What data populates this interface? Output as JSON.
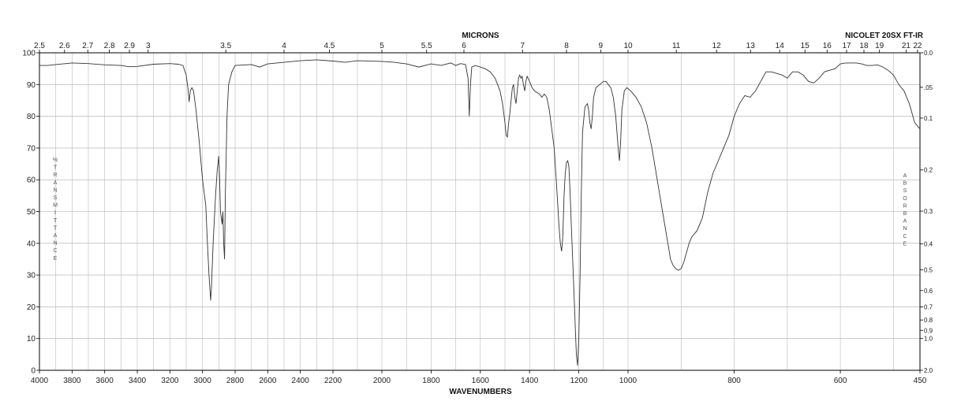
{
  "chart_data": {
    "type": "line",
    "instrument": "NICOLET 20SX FT-IR",
    "xlabel": "WAVENUMBERS",
    "x2label": "MICRONS",
    "ylabel": "%TRANSMITTANCE",
    "y2label": "ABSORBANCE",
    "xlim": [
      4000,
      450
    ],
    "ylim": [
      0,
      100
    ],
    "grid": true,
    "wavenumber_ticks": [
      {
        "value": 4000,
        "label": "4000"
      },
      {
        "value": 3800,
        "label": "3800"
      },
      {
        "value": 3600,
        "label": "3600"
      },
      {
        "value": 3400,
        "label": "3400"
      },
      {
        "value": 3200,
        "label": "3200"
      },
      {
        "value": 3000,
        "label": "3000"
      },
      {
        "value": 2800,
        "label": "2800"
      },
      {
        "value": 2600,
        "label": "2600"
      },
      {
        "value": 2400,
        "label": "2400"
      },
      {
        "value": 2200,
        "label": "2200"
      },
      {
        "value": 2000,
        "label": "2000"
      },
      {
        "value": 1800,
        "label": "1800"
      },
      {
        "value": 1600,
        "label": "1600"
      },
      {
        "value": 1400,
        "label": "1400"
      },
      {
        "value": 1200,
        "label": "1200"
      },
      {
        "value": 1000,
        "label": "1000"
      },
      {
        "value": 800,
        "label": "800"
      },
      {
        "value": 600,
        "label": "600"
      },
      {
        "value": 450,
        "label": "450"
      }
    ],
    "micron_ticks": [
      {
        "value": 2.5,
        "label": "2.5"
      },
      {
        "value": 2.6,
        "label": "2.6"
      },
      {
        "value": 2.7,
        "label": "2.7"
      },
      {
        "value": 2.8,
        "label": "2.8"
      },
      {
        "value": 2.9,
        "label": "2.9"
      },
      {
        "value": 3,
        "label": "3"
      },
      {
        "value": 3.5,
        "label": "3.5"
      },
      {
        "value": 4,
        "label": "4"
      },
      {
        "value": 4.5,
        "label": "4.5"
      },
      {
        "value": 5,
        "label": "5"
      },
      {
        "value": 5.5,
        "label": "5.5"
      },
      {
        "value": 6,
        "label": "6"
      },
      {
        "value": 7,
        "label": "7"
      },
      {
        "value": 8,
        "label": "8"
      },
      {
        "value": 9,
        "label": "9"
      },
      {
        "value": 10,
        "label": "10"
      },
      {
        "value": 11,
        "label": "11"
      },
      {
        "value": 12,
        "label": "12"
      },
      {
        "value": 13,
        "label": "13"
      },
      {
        "value": 14,
        "label": "14"
      },
      {
        "value": 15,
        "label": "15"
      },
      {
        "value": 16,
        "label": "16"
      },
      {
        "value": 17,
        "label": "17"
      },
      {
        "value": 18,
        "label": "18"
      },
      {
        "value": 19,
        "label": "19"
      },
      {
        "value": 21,
        "label": "21"
      },
      {
        "value": 22,
        "label": "22"
      }
    ],
    "transmittance_ticks": [
      {
        "value": 0,
        "label": "0"
      },
      {
        "value": 10,
        "label": "10"
      },
      {
        "value": 20,
        "label": "20"
      },
      {
        "value": 30,
        "label": "30"
      },
      {
        "value": 40,
        "label": "40"
      },
      {
        "value": 50,
        "label": "50"
      },
      {
        "value": 60,
        "label": "60"
      },
      {
        "value": 70,
        "label": "70"
      },
      {
        "value": 80,
        "label": "80"
      },
      {
        "value": 90,
        "label": "90"
      },
      {
        "value": 100,
        "label": "100"
      }
    ],
    "absorbance_ticks": [
      {
        "value": 0.0,
        "label": "0.0"
      },
      {
        "value": 0.05,
        "label": ".05"
      },
      {
        "value": 0.1,
        "label": "0.1"
      },
      {
        "value": 0.2,
        "label": "0.2"
      },
      {
        "value": 0.3,
        "label": "0.3"
      },
      {
        "value": 0.4,
        "label": "0.4"
      },
      {
        "value": 0.5,
        "label": "0.5"
      },
      {
        "value": 0.6,
        "label": "0.6"
      },
      {
        "value": 0.7,
        "label": "0.7"
      },
      {
        "value": 0.8,
        "label": "0.8"
      },
      {
        "value": 0.9,
        "label": "0.9"
      },
      {
        "value": 1.0,
        "label": "1.0"
      },
      {
        "value": 2.0,
        "label": "2.0"
      }
    ],
    "series": [
      {
        "color": "#333333",
        "points": [
          [
            4000,
            96
          ],
          [
            3950,
            96
          ],
          [
            3900,
            96.3
          ],
          [
            3800,
            96.8
          ],
          [
            3700,
            96.6
          ],
          [
            3600,
            96.2
          ],
          [
            3500,
            96
          ],
          [
            3450,
            95.6
          ],
          [
            3400,
            95.7
          ],
          [
            3300,
            96.4
          ],
          [
            3200,
            96.6
          ],
          [
            3150,
            96.4
          ],
          [
            3120,
            96
          ],
          [
            3100,
            93
          ],
          [
            3090,
            89
          ],
          [
            3082,
            84.5
          ],
          [
            3075,
            88
          ],
          [
            3065,
            89
          ],
          [
            3055,
            88
          ],
          [
            3040,
            82
          ],
          [
            3020,
            72
          ],
          [
            3000,
            60
          ],
          [
            2990,
            56
          ],
          [
            2980,
            52
          ],
          [
            2970,
            40
          ],
          [
            2960,
            30
          ],
          [
            2950,
            22
          ],
          [
            2945,
            26
          ],
          [
            2935,
            40
          ],
          [
            2920,
            55
          ],
          [
            2910,
            63
          ],
          [
            2900,
            67.5
          ],
          [
            2895,
            60
          ],
          [
            2890,
            50
          ],
          [
            2880,
            46
          ],
          [
            2875,
            50
          ],
          [
            2870,
            40
          ],
          [
            2865,
            35
          ],
          [
            2860,
            55
          ],
          [
            2850,
            80
          ],
          [
            2840,
            90
          ],
          [
            2820,
            94
          ],
          [
            2800,
            96
          ],
          [
            2700,
            96.3
          ],
          [
            2650,
            95.5
          ],
          [
            2600,
            96.5
          ],
          [
            2500,
            97
          ],
          [
            2400,
            97.5
          ],
          [
            2300,
            97.8
          ],
          [
            2200,
            97.4
          ],
          [
            2150,
            97
          ],
          [
            2100,
            97.5
          ],
          [
            2000,
            97.3
          ],
          [
            1950,
            97
          ],
          [
            1900,
            96.5
          ],
          [
            1850,
            95.5
          ],
          [
            1800,
            96.5
          ],
          [
            1760,
            96
          ],
          [
            1720,
            96.8
          ],
          [
            1700,
            96
          ],
          [
            1680,
            96.6
          ],
          [
            1660,
            96.3
          ],
          [
            1650,
            92
          ],
          [
            1645,
            80
          ],
          [
            1640,
            90
          ],
          [
            1635,
            95.5
          ],
          [
            1620,
            96
          ],
          [
            1580,
            95
          ],
          [
            1560,
            94
          ],
          [
            1540,
            92
          ],
          [
            1520,
            88
          ],
          [
            1510,
            84
          ],
          [
            1500,
            78
          ],
          [
            1495,
            74
          ],
          [
            1490,
            73.5
          ],
          [
            1485,
            78
          ],
          [
            1480,
            81
          ],
          [
            1475,
            85
          ],
          [
            1470,
            89
          ],
          [
            1465,
            90
          ],
          [
            1460,
            86
          ],
          [
            1455,
            84
          ],
          [
            1450,
            88
          ],
          [
            1445,
            92
          ],
          [
            1440,
            93
          ],
          [
            1435,
            92
          ],
          [
            1430,
            92.6
          ],
          [
            1425,
            90
          ],
          [
            1420,
            88
          ],
          [
            1415,
            91
          ],
          [
            1410,
            92.6
          ],
          [
            1400,
            91
          ],
          [
            1390,
            89
          ],
          [
            1380,
            88
          ],
          [
            1360,
            87
          ],
          [
            1350,
            86
          ],
          [
            1340,
            87
          ],
          [
            1330,
            86
          ],
          [
            1320,
            82
          ],
          [
            1310,
            76
          ],
          [
            1300,
            70
          ],
          [
            1290,
            58
          ],
          [
            1280,
            45
          ],
          [
            1275,
            40
          ],
          [
            1270,
            37.5
          ],
          [
            1265,
            42
          ],
          [
            1260,
            55
          ],
          [
            1255,
            62
          ],
          [
            1250,
            65.5
          ],
          [
            1245,
            66
          ],
          [
            1240,
            64
          ],
          [
            1235,
            55
          ],
          [
            1230,
            45
          ],
          [
            1225,
            35
          ],
          [
            1220,
            25
          ],
          [
            1215,
            15
          ],
          [
            1210,
            5
          ],
          [
            1205,
            1.5
          ],
          [
            1200,
            10
          ],
          [
            1195,
            30
          ],
          [
            1190,
            55
          ],
          [
            1185,
            75
          ],
          [
            1175,
            83
          ],
          [
            1165,
            84
          ],
          [
            1160,
            82
          ],
          [
            1155,
            78
          ],
          [
            1150,
            76
          ],
          [
            1145,
            80
          ],
          [
            1140,
            86
          ],
          [
            1130,
            89
          ],
          [
            1115,
            90
          ],
          [
            1100,
            91
          ],
          [
            1090,
            91
          ],
          [
            1080,
            90
          ],
          [
            1070,
            89
          ],
          [
            1060,
            86
          ],
          [
            1050,
            80
          ],
          [
            1040,
            70
          ],
          [
            1035,
            66
          ],
          [
            1030,
            72
          ],
          [
            1025,
            82
          ],
          [
            1015,
            88
          ],
          [
            1005,
            89
          ],
          [
            995,
            88
          ],
          [
            985,
            86
          ],
          [
            975,
            83
          ],
          [
            965,
            78
          ],
          [
            955,
            70
          ],
          [
            945,
            60
          ],
          [
            935,
            50
          ],
          [
            925,
            40
          ],
          [
            920,
            35
          ],
          [
            915,
            33
          ],
          [
            910,
            32
          ],
          [
            905,
            31.5
          ],
          [
            900,
            32
          ],
          [
            895,
            34
          ],
          [
            890,
            37
          ],
          [
            885,
            40
          ],
          [
            880,
            42
          ],
          [
            870,
            44
          ],
          [
            860,
            48
          ],
          [
            850,
            56
          ],
          [
            840,
            62
          ],
          [
            830,
            66
          ],
          [
            820,
            70
          ],
          [
            810,
            74
          ],
          [
            800,
            80
          ],
          [
            790,
            84
          ],
          [
            780,
            86.5
          ],
          [
            770,
            86
          ],
          [
            760,
            88
          ],
          [
            750,
            91
          ],
          [
            740,
            94
          ],
          [
            730,
            94
          ],
          [
            720,
            93.5
          ],
          [
            710,
            93
          ],
          [
            700,
            92
          ],
          [
            690,
            94
          ],
          [
            680,
            94
          ],
          [
            670,
            93
          ],
          [
            660,
            91
          ],
          [
            650,
            90.5
          ],
          [
            640,
            92
          ],
          [
            630,
            94
          ],
          [
            620,
            94.5
          ],
          [
            610,
            95
          ],
          [
            600,
            96.5
          ],
          [
            590,
            96.8
          ],
          [
            580,
            96.8
          ],
          [
            570,
            96.8
          ],
          [
            560,
            96.5
          ],
          [
            550,
            96
          ],
          [
            540,
            96
          ],
          [
            530,
            96.2
          ],
          [
            520,
            95.5
          ],
          [
            510,
            94.5
          ],
          [
            500,
            93
          ],
          [
            490,
            90
          ],
          [
            480,
            88
          ],
          [
            470,
            84
          ],
          [
            465,
            81
          ],
          [
            460,
            78
          ],
          [
            450,
            76
          ]
        ]
      }
    ]
  }
}
